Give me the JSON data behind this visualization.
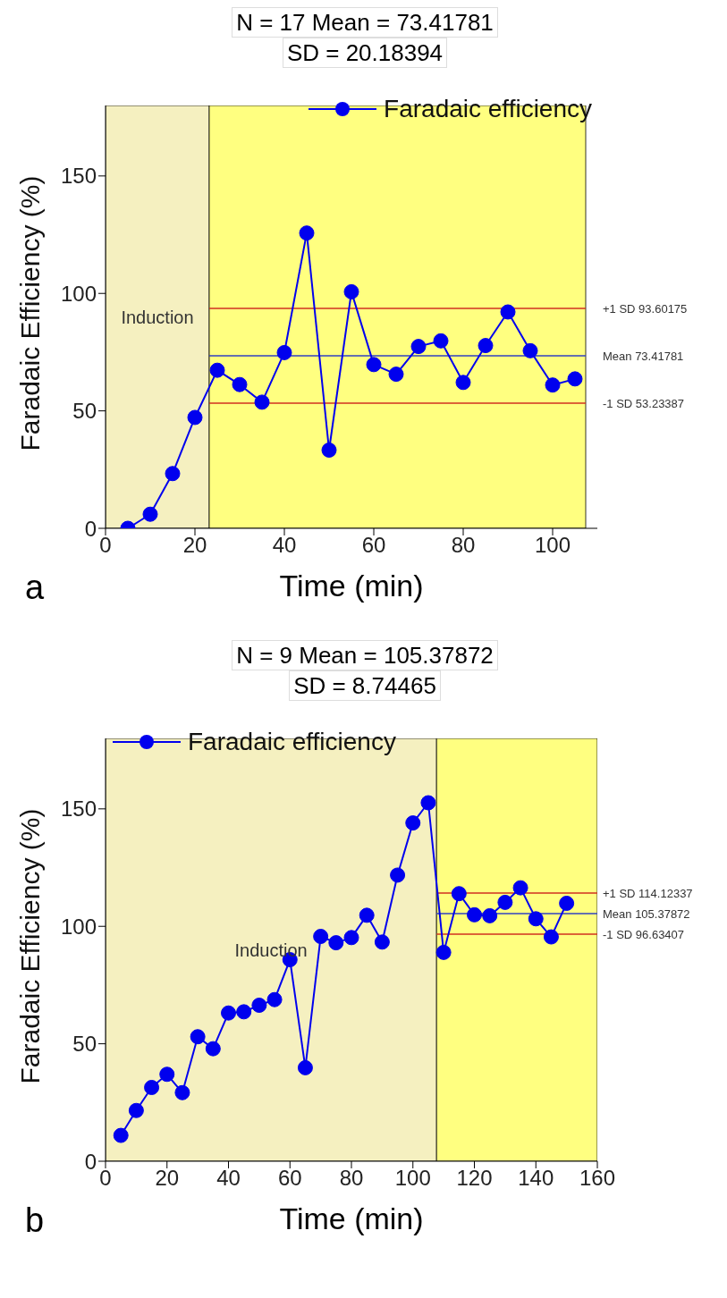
{
  "chart_data": [
    {
      "type": "line",
      "title": "N = 17 Mean = 73.41781",
      "subtitle": "SD = 20.18394",
      "xlabel": "Time (min)",
      "ylabel": "Faradaic Efficiency (%)",
      "annotations": [
        "a"
      ],
      "x": [
        5,
        10,
        15,
        20,
        25,
        30,
        35,
        40,
        45,
        50,
        55,
        60,
        65,
        70,
        75,
        80,
        85,
        90,
        95,
        100,
        105
      ],
      "series": [
        {
          "name": "Faradaic efficiency",
          "color": "#0000ee",
          "values": [
            0,
            6,
            23.3,
            47.2,
            67.3,
            61.2,
            53.7,
            74.8,
            125.7,
            33.3,
            100.7,
            69.7,
            65.6,
            77.4,
            79.8,
            62.1,
            77.8,
            92.1,
            75.6,
            61,
            63.6
          ]
        }
      ],
      "xlim": [
        0,
        110
      ],
      "xticks": [
        0,
        20,
        40,
        60,
        80,
        100
      ],
      "ylim": [
        0,
        180
      ],
      "yticks": [
        0,
        50,
        100,
        150
      ],
      "bands": [
        {
          "axis": "x",
          "from": 0,
          "to": 23.2,
          "label": "Induction",
          "color": "#f5f0c0"
        },
        {
          "axis": "x",
          "from": 23.2,
          "to": 107.4,
          "color": "#ffff80"
        }
      ],
      "ref_lines": [
        {
          "axis": "y",
          "value": 93.60175,
          "label": "+1 SD 93.60175",
          "color": "#d03020"
        },
        {
          "axis": "y",
          "value": 73.41781,
          "label": "Mean 73.41781",
          "color": "#3040c0"
        },
        {
          "axis": "y",
          "value": 53.23387,
          "label": "-1 SD 53.23387",
          "color": "#d03020"
        }
      ],
      "grid": false,
      "legend": "top right",
      "marker": "circle",
      "line_style": "solid"
    },
    {
      "type": "line",
      "title": "N = 9 Mean = 105.37872",
      "subtitle": "SD = 8.74465",
      "xlabel": "Time (min)",
      "ylabel": "Faradaic Efficiency (%)",
      "annotations": [
        "b"
      ],
      "x": [
        5,
        10,
        15,
        20,
        25,
        30,
        35,
        40,
        45,
        50,
        55,
        60,
        65,
        70,
        75,
        80,
        85,
        90,
        95,
        100,
        105,
        110,
        115,
        120,
        125,
        130,
        135,
        140,
        145,
        150
      ],
      "series": [
        {
          "name": "Faradaic efficiency",
          "color": "#0000ee",
          "values": [
            11,
            21.6,
            31.4,
            37,
            29.2,
            53,
            47.9,
            63.1,
            63.6,
            66.4,
            68.8,
            85.8,
            39.8,
            95.7,
            93,
            95.2,
            104.7,
            93.3,
            121.8,
            144,
            152.6,
            88.9,
            113.9,
            104.9,
            104.5,
            110.2,
            116.4,
            103.2,
            95.5,
            109.8
          ]
        }
      ],
      "xlim": [
        0,
        160
      ],
      "xticks": [
        0,
        20,
        40,
        60,
        80,
        100,
        120,
        140,
        160
      ],
      "ylim": [
        0,
        180
      ],
      "yticks": [
        0,
        50,
        100,
        150
      ],
      "bands": [
        {
          "axis": "x",
          "from": 0,
          "to": 107.7,
          "label": "Induction",
          "color": "#f5f0c0"
        },
        {
          "axis": "x",
          "from": 107.7,
          "to": 160,
          "color": "#ffff80"
        }
      ],
      "ref_lines": [
        {
          "axis": "y",
          "value": 114.12337,
          "label": "+1 SD 114.12337",
          "color": "#d03020"
        },
        {
          "axis": "y",
          "value": 105.37872,
          "label": "Mean 105.37872",
          "color": "#3040c0"
        },
        {
          "axis": "y",
          "value": 96.63407,
          "label": "-1 SD 96.63407",
          "color": "#d03020"
        }
      ],
      "grid": false,
      "legend": "top left",
      "marker": "circle",
      "line_style": "solid"
    }
  ]
}
